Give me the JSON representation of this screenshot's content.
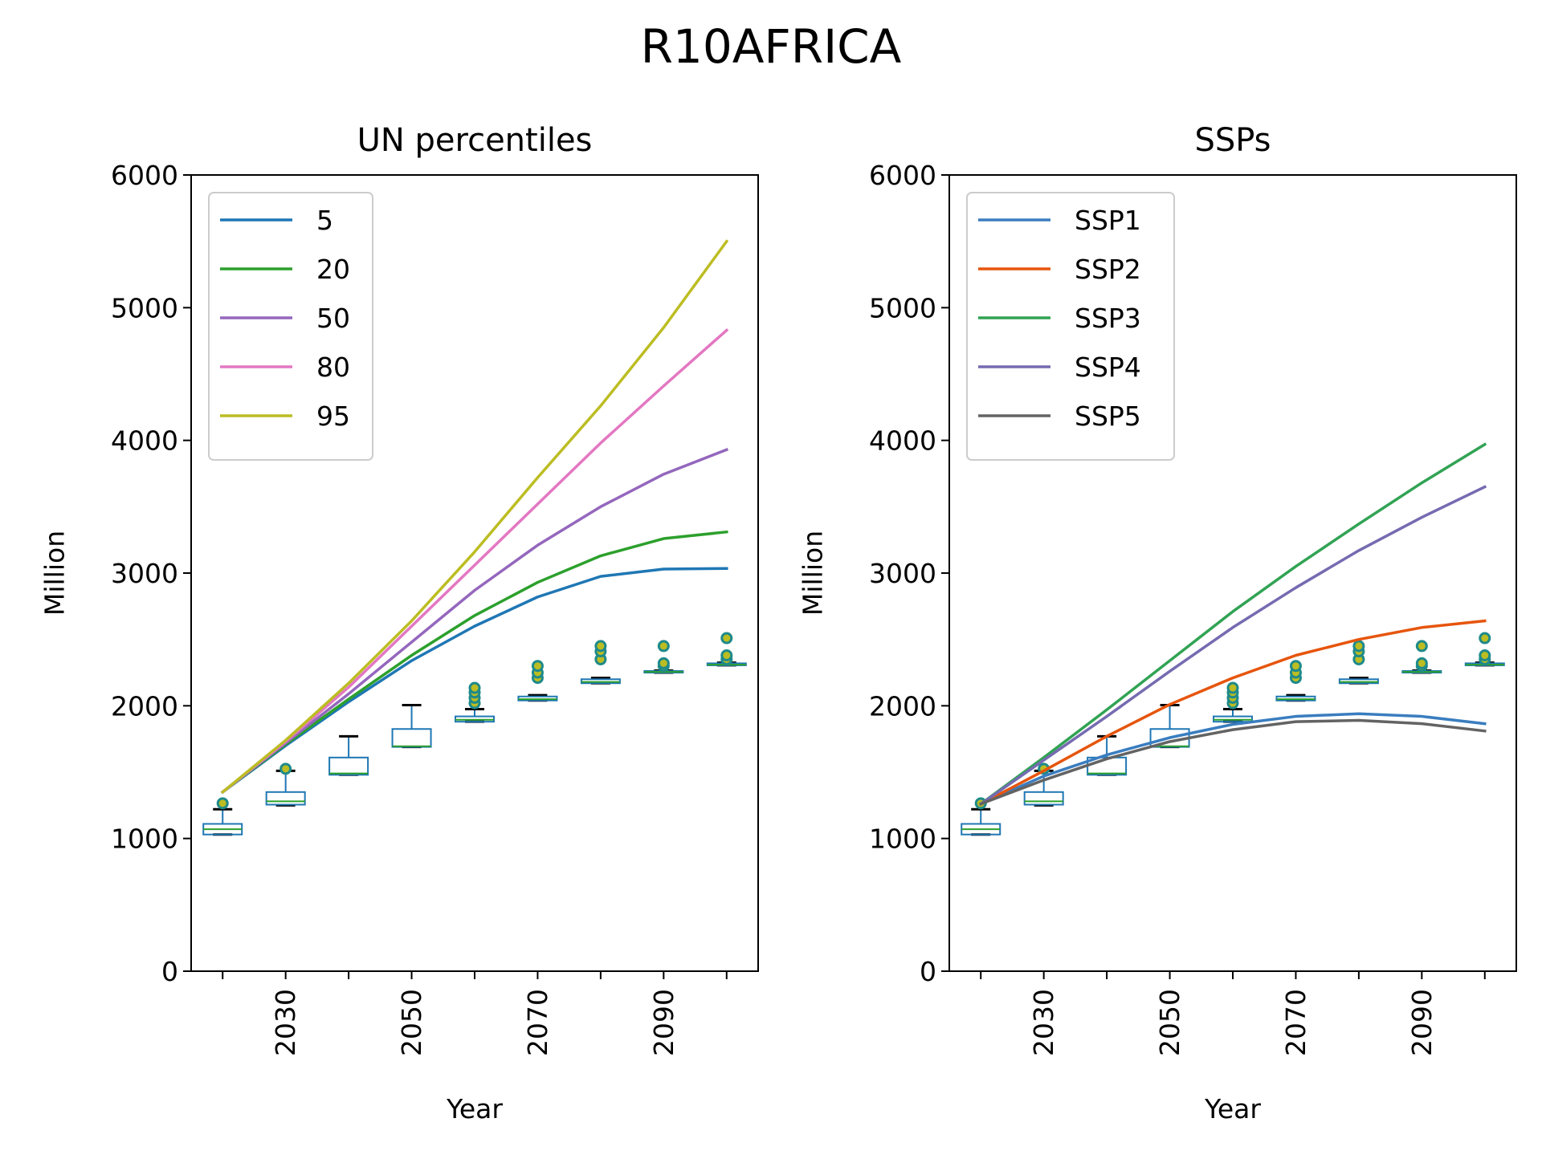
{
  "suptitle": "R10AFRICA",
  "chart_data": [
    {
      "type": "line",
      "title": "UN percentiles",
      "xlabel": "Year",
      "ylabel": "Million",
      "xlim": [
        2015,
        2105
      ],
      "ylim": [
        0,
        6000
      ],
      "yticks": [
        0,
        1000,
        2000,
        3000,
        4000,
        5000,
        6000
      ],
      "xticks": [
        2020,
        2030,
        2040,
        2050,
        2060,
        2070,
        2080,
        2090,
        2100
      ],
      "xticklabels": [
        "",
        "2030",
        "",
        "2050",
        "",
        "2070",
        "",
        "2090",
        ""
      ],
      "legend_position": "upper-left",
      "x": [
        2020,
        2030,
        2040,
        2050,
        2060,
        2070,
        2080,
        2090,
        2100
      ],
      "series": [
        {
          "name": "5",
          "color": "#1f77b4",
          "values": [
            1350,
            1700,
            2030,
            2340,
            2600,
            2820,
            2975,
            3030,
            3035
          ]
        },
        {
          "name": "20",
          "color": "#2ca02c",
          "values": [
            1350,
            1710,
            2050,
            2380,
            2680,
            2930,
            3130,
            3260,
            3310
          ]
        },
        {
          "name": "50",
          "color": "#9467bd",
          "values": [
            1350,
            1720,
            2090,
            2480,
            2870,
            3210,
            3500,
            3745,
            3930
          ]
        },
        {
          "name": "80",
          "color": "#e377c2",
          "values": [
            1350,
            1730,
            2140,
            2600,
            3060,
            3520,
            3980,
            4410,
            4830
          ]
        },
        {
          "name": "95",
          "color": "#bcbd22",
          "values": [
            1350,
            1740,
            2170,
            2640,
            3160,
            3720,
            4260,
            4850,
            5500
          ]
        }
      ],
      "boxplot": {
        "box_color": "#1f77b4",
        "median_color": "#2ca02c",
        "whisker_cap_color": "#000000",
        "flier_edge_color": "#1f8a8a",
        "flier_face_color": "#bcbd22",
        "boxes": [
          {
            "x": 2020,
            "q1": 1030,
            "median": 1070,
            "q3": 1110,
            "whisker_low": 1030,
            "whisker_high": 1220,
            "fliers": [
              1265
            ]
          },
          {
            "x": 2030,
            "q1": 1255,
            "median": 1280,
            "q3": 1350,
            "whisker_low": 1250,
            "whisker_high": 1510,
            "fliers": [
              1525
            ]
          },
          {
            "x": 2040,
            "q1": 1480,
            "median": 1490,
            "q3": 1610,
            "whisker_low": 1480,
            "whisker_high": 1770,
            "fliers": []
          },
          {
            "x": 2050,
            "q1": 1690,
            "median": 1695,
            "q3": 1825,
            "whisker_low": 1690,
            "whisker_high": 2005,
            "fliers": []
          },
          {
            "x": 2060,
            "q1": 1880,
            "median": 1895,
            "q3": 1920,
            "whisker_low": 1880,
            "whisker_high": 1975,
            "fliers": [
              2020,
              2060,
              2100,
              2135
            ]
          },
          {
            "x": 2070,
            "q1": 2040,
            "median": 2050,
            "q3": 2070,
            "whisker_low": 2040,
            "whisker_high": 2080,
            "fliers": [
              2210,
              2250,
              2300
            ]
          },
          {
            "x": 2080,
            "q1": 2170,
            "median": 2180,
            "q3": 2200,
            "whisker_low": 2170,
            "whisker_high": 2210,
            "fliers": [
              2350,
              2410,
              2450
            ]
          },
          {
            "x": 2090,
            "q1": 2250,
            "median": 2255,
            "q3": 2262,
            "whisker_low": 2250,
            "whisker_high": 2265,
            "fliers": [
              2300,
              2320,
              2450
            ]
          },
          {
            "x": 2100,
            "q1": 2305,
            "median": 2310,
            "q3": 2320,
            "whisker_low": 2305,
            "whisker_high": 2325,
            "fliers": [
              2350,
              2380,
              2510
            ]
          }
        ]
      }
    },
    {
      "type": "line",
      "title": "SSPs",
      "xlabel": "Year",
      "ylabel": "Million",
      "xlim": [
        2015,
        2105
      ],
      "ylim": [
        0,
        6000
      ],
      "yticks": [
        0,
        1000,
        2000,
        3000,
        4000,
        5000,
        6000
      ],
      "xticks": [
        2020,
        2030,
        2040,
        2050,
        2060,
        2070,
        2080,
        2090,
        2100
      ],
      "xticklabels": [
        "",
        "2030",
        "",
        "2050",
        "",
        "2070",
        "",
        "2090",
        ""
      ],
      "legend_position": "upper-left",
      "x": [
        2020,
        2030,
        2040,
        2050,
        2060,
        2070,
        2080,
        2090,
        2100
      ],
      "series": [
        {
          "name": "SSP1",
          "color": "#3a7dbf",
          "values": [
            1260,
            1470,
            1630,
            1760,
            1860,
            1920,
            1940,
            1920,
            1865
          ]
        },
        {
          "name": "SSP2",
          "color": "#e6550d",
          "values": [
            1260,
            1510,
            1770,
            2010,
            2210,
            2380,
            2500,
            2590,
            2640
          ]
        },
        {
          "name": "SSP3",
          "color": "#31a354",
          "values": [
            1260,
            1610,
            1970,
            2340,
            2710,
            3050,
            3370,
            3680,
            3970
          ]
        },
        {
          "name": "SSP4",
          "color": "#756bb1",
          "values": [
            1260,
            1590,
            1920,
            2260,
            2590,
            2890,
            3170,
            3420,
            3650
          ]
        },
        {
          "name": "SSP5",
          "color": "#636363",
          "values": [
            1260,
            1440,
            1600,
            1730,
            1820,
            1880,
            1890,
            1865,
            1810
          ]
        }
      ],
      "boxplot": {
        "box_color": "#1f77b4",
        "median_color": "#2ca02c",
        "whisker_cap_color": "#000000",
        "flier_edge_color": "#1f8a8a",
        "flier_face_color": "#bcbd22",
        "boxes": [
          {
            "x": 2020,
            "q1": 1030,
            "median": 1070,
            "q3": 1110,
            "whisker_low": 1030,
            "whisker_high": 1220,
            "fliers": [
              1265
            ]
          },
          {
            "x": 2030,
            "q1": 1255,
            "median": 1280,
            "q3": 1350,
            "whisker_low": 1250,
            "whisker_high": 1510,
            "fliers": [
              1525
            ]
          },
          {
            "x": 2040,
            "q1": 1480,
            "median": 1490,
            "q3": 1610,
            "whisker_low": 1480,
            "whisker_high": 1770,
            "fliers": []
          },
          {
            "x": 2050,
            "q1": 1690,
            "median": 1695,
            "q3": 1825,
            "whisker_low": 1690,
            "whisker_high": 2005,
            "fliers": []
          },
          {
            "x": 2060,
            "q1": 1880,
            "median": 1895,
            "q3": 1920,
            "whisker_low": 1880,
            "whisker_high": 1975,
            "fliers": [
              2020,
              2060,
              2100,
              2135
            ]
          },
          {
            "x": 2070,
            "q1": 2040,
            "median": 2050,
            "q3": 2070,
            "whisker_low": 2040,
            "whisker_high": 2080,
            "fliers": [
              2210,
              2250,
              2300
            ]
          },
          {
            "x": 2080,
            "q1": 2170,
            "median": 2180,
            "q3": 2200,
            "whisker_low": 2170,
            "whisker_high": 2210,
            "fliers": [
              2350,
              2410,
              2450
            ]
          },
          {
            "x": 2090,
            "q1": 2250,
            "median": 2255,
            "q3": 2262,
            "whisker_low": 2250,
            "whisker_high": 2265,
            "fliers": [
              2300,
              2320,
              2450
            ]
          },
          {
            "x": 2100,
            "q1": 2305,
            "median": 2310,
            "q3": 2320,
            "whisker_low": 2305,
            "whisker_high": 2325,
            "fliers": [
              2350,
              2380,
              2510
            ]
          }
        ]
      }
    }
  ]
}
